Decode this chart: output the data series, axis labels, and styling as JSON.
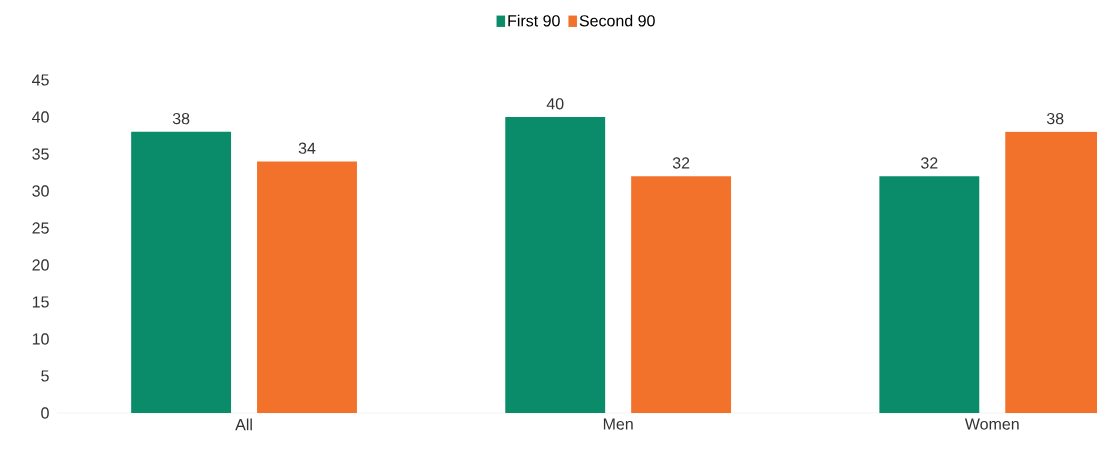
{
  "chart_data": {
    "type": "bar",
    "categories": [
      "All",
      "Men",
      "Women"
    ],
    "series": [
      {
        "name": "First 90",
        "color": "#0a8c6a",
        "values": [
          38,
          40,
          32
        ]
      },
      {
        "name": "Second 90",
        "color": "#f2722b",
        "values": [
          34,
          32,
          38
        ]
      }
    ],
    "ylim": [
      0,
      45
    ],
    "yticks": [
      0,
      5,
      10,
      15,
      20,
      25,
      30,
      35,
      40,
      45
    ],
    "grid": false,
    "legend": "top",
    "data_labels": true
  }
}
